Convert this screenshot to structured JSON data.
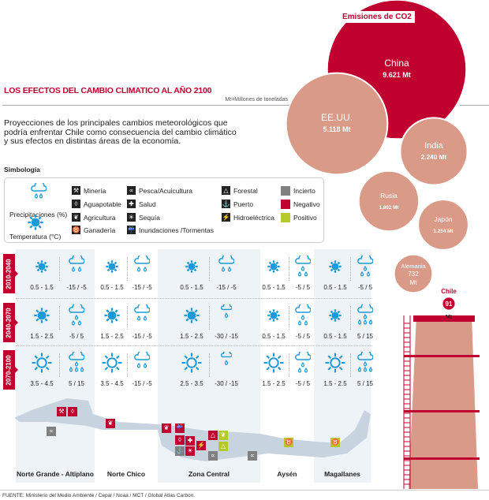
{
  "header": {
    "title": "LOS EFECTOS DEL CAMBIO CLIMATICO AL AÑO 2100",
    "units_note": "Mt=Millones de toneladas",
    "intro": "Proyecciones de los principales cambios meteorológicos que podría enfrentar Chile como consecuencia del  cambio climático y sus efectos en distintas áreas de la economía."
  },
  "legend": {
    "title": "Simbología",
    "precip": "Precipitaciones (%)",
    "temp": "Temperatura (°C)",
    "sectors": [
      {
        "label": "Minería",
        "icon": "⚒"
      },
      {
        "label": "Aguapotable",
        "icon": "◊"
      },
      {
        "label": "Agricultura",
        "icon": "❦"
      },
      {
        "label": "Ganadería",
        "icon": "♉"
      },
      {
        "label": "Pesca/Acuicultura",
        "icon": "∝"
      },
      {
        "label": "Salud",
        "icon": "✚"
      },
      {
        "label": "Sequía",
        "icon": "☀"
      },
      {
        "label": "Inundaciones /Tormentas",
        "icon": "☔"
      },
      {
        "label": "Forestal",
        "icon": "△"
      },
      {
        "label": "Puerto",
        "icon": "⚓"
      },
      {
        "label": "Hidroeléctrica",
        "icon": "⚡"
      }
    ],
    "status": [
      {
        "label": "Incierto",
        "color": "#808080"
      },
      {
        "label": "Negativo",
        "color": "#c0002f"
      },
      {
        "label": "Positivo",
        "color": "#b5c92a"
      }
    ]
  },
  "chart_data": {
    "type": "bubble",
    "title": "Emisiones de CO2",
    "unit": "Mt",
    "bubbles": [
      {
        "label": "China",
        "value": 9621,
        "text": "9.621 Mt",
        "color": "#c0002f"
      },
      {
        "label": "EE.UU.",
        "value": 5118,
        "text": "5.118 Mt",
        "color": "#d99a88"
      },
      {
        "label": "India",
        "value": 2240,
        "text": "2.240 Mt",
        "color": "#d99a88"
      },
      {
        "label": "Rusia",
        "value": 1802,
        "text": "1.802 Mt",
        "color": "#d99a88"
      },
      {
        "label": "Japón",
        "value": 1254,
        "text": "1.254 Mt",
        "color": "#d99a88"
      },
      {
        "label": "Alemania",
        "value": 732,
        "text": "732 Mt",
        "color": "#d99a88"
      },
      {
        "label": "Chile",
        "value": 91,
        "text": "91",
        "unit_text": "Mt",
        "color": "#c0002f"
      }
    ]
  },
  "periods": [
    "2010-2040",
    "2040-2070",
    "2070-2100"
  ],
  "regions": [
    {
      "name": "Norte Grande - Altiplano",
      "temp": [
        "0.5 - 1.5",
        "1.5 - 2.5",
        "3.5 - 4.5"
      ],
      "precip": [
        "-15 / -5",
        "-5 / 5",
        "5 / 15"
      ]
    },
    {
      "name": "Norte Chico",
      "temp": [
        "0.5 - 1.5",
        "1.5 - 2.5",
        "3.5 - 4.5"
      ],
      "precip": [
        "-15 / -5",
        "-15 / -5",
        "-15 / -5"
      ]
    },
    {
      "name": "Zona Central",
      "temp": [
        "0.5 - 1.5",
        "1.5 - 2.5",
        "2.5 - 3.5"
      ],
      "precip": [
        "-15 / -5",
        "-30 / -15",
        "-30 / -15"
      ]
    },
    {
      "name": "Aysén",
      "temp": [
        "0.5 - 1.5",
        "0.5 - 1.5",
        "1.5 - 2.5"
      ],
      "precip": [
        "-5 / 5",
        "-5 / 5",
        "-5 / 5"
      ]
    },
    {
      "name": "Magallanes",
      "temp": [
        "0.5 - 1.5",
        "0.5 - 1.5",
        "1.5 - 2.5"
      ],
      "precip": [
        "-5 / 5",
        "5 / 15",
        "5 / 15"
      ]
    }
  ],
  "map_impacts": [
    {
      "region": "Norte Grande - Altiplano",
      "sector": "Minería",
      "status": "Negativo"
    },
    {
      "region": "Norte Grande - Altiplano",
      "sector": "Aguapotable",
      "status": "Negativo"
    },
    {
      "region": "Norte Grande - Altiplano",
      "sector": "Pesca/Acuicultura",
      "status": "Incierto"
    },
    {
      "region": "Norte Chico",
      "sector": "Agricultura",
      "status": "Negativo"
    },
    {
      "region": "Zona Central",
      "sector": "Agricultura",
      "status": "Negativo"
    },
    {
      "region": "Zona Central",
      "sector": "Inundaciones /Tormentas",
      "status": "Negativo"
    },
    {
      "region": "Zona Central",
      "sector": "Aguapotable",
      "status": "Negativo"
    },
    {
      "region": "Zona Central",
      "sector": "Salud",
      "status": "Negativo"
    },
    {
      "region": "Zona Central",
      "sector": "Puerto",
      "status": "Incierto"
    },
    {
      "region": "Zona Central",
      "sector": "Sequía",
      "status": "Negativo"
    },
    {
      "region": "Zona Central",
      "sector": "Hidroeléctrica",
      "status": "Negativo"
    },
    {
      "region": "Zona Central",
      "sector": "Forestal",
      "status": "Negativo"
    },
    {
      "region": "Zona Central",
      "sector": "Agricultura",
      "status": "Positivo"
    },
    {
      "region": "Zona Central",
      "sector": "Forestal",
      "status": "Positivo"
    },
    {
      "region": "Zona Central",
      "sector": "Pesca/Acuicultura",
      "status": "Incierto"
    },
    {
      "region": "Zona Central",
      "sector": "Pesca/Acuicultura",
      "status": "Incierto"
    },
    {
      "region": "Aysén",
      "sector": "Ganadería",
      "status": "Positivo"
    },
    {
      "region": "Magallanes",
      "sector": "Ganadería",
      "status": "Positivo"
    }
  ],
  "source": "FUENTE: Ministerio del Medio Ambiente  / Cepal / Noaa / MCT / Global Atlas Carbon."
}
